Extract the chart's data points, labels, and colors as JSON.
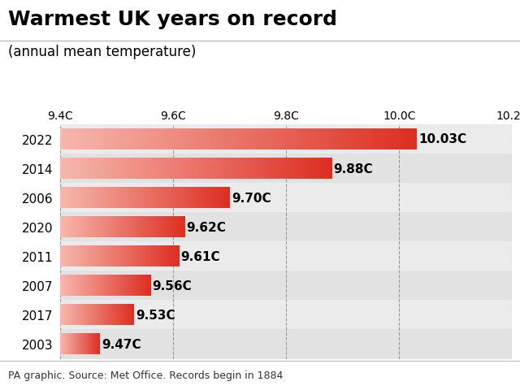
{
  "title": "Warmest UK years on record",
  "subtitle": "(annual mean temperature)",
  "years": [
    "2022",
    "2014",
    "2006",
    "2020",
    "2011",
    "2007",
    "2017",
    "2003"
  ],
  "values": [
    10.03,
    9.88,
    9.7,
    9.62,
    9.61,
    9.56,
    9.53,
    9.47
  ],
  "labels": [
    "10.03C",
    "9.88C",
    "9.70C",
    "9.62C",
    "9.61C",
    "9.56C",
    "9.53C",
    "9.47C"
  ],
  "xlim_min": 9.4,
  "xlim_max": 10.2,
  "xticks": [
    9.4,
    9.6,
    9.8,
    10.0,
    10.2
  ],
  "xtick_labels": [
    "9.4C",
    "9.6C",
    "9.8C",
    "10.0C",
    "10.2C"
  ],
  "row_color_odd": "#ebebeb",
  "row_color_even": "#e2e2e2",
  "fig_background": "#ffffff",
  "title_fontsize": 18,
  "subtitle_fontsize": 12,
  "label_fontsize": 11,
  "tick_fontsize": 10,
  "footnote": "PA graphic. Source: Met Office. Records begin in 1884",
  "r_light": 0.968,
  "g_light": 0.72,
  "b_light": 0.68,
  "r_strong": 0.87,
  "g_strong": 0.18,
  "b_strong": 0.13
}
